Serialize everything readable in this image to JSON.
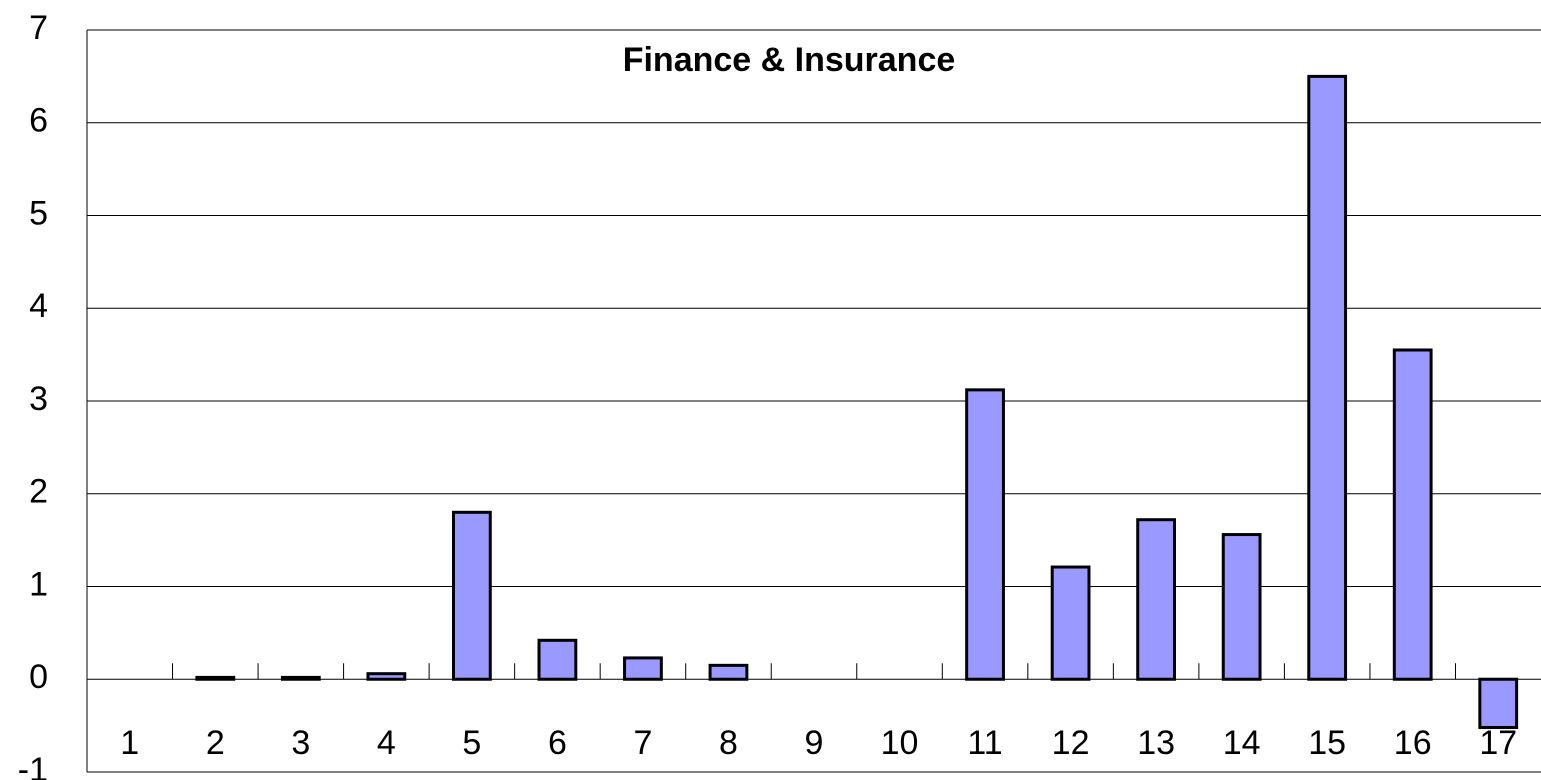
{
  "chart_data": {
    "type": "bar",
    "title": "Finance & Insurance",
    "categories": [
      "1",
      "2",
      "3",
      "4",
      "5",
      "6",
      "7",
      "8",
      "9",
      "10",
      "11",
      "12",
      "13",
      "14",
      "15",
      "16",
      "17"
    ],
    "values": [
      0,
      0.02,
      0.02,
      0.06,
      1.8,
      0.42,
      0.23,
      0.15,
      0,
      0,
      3.12,
      1.21,
      1.72,
      1.56,
      6.5,
      3.55,
      -0.52
    ],
    "color": "#9999ff",
    "ylim": [
      -1,
      7
    ],
    "yticks": [
      -1,
      0,
      1,
      2,
      3,
      4,
      5,
      6,
      7
    ],
    "grid": true
  }
}
